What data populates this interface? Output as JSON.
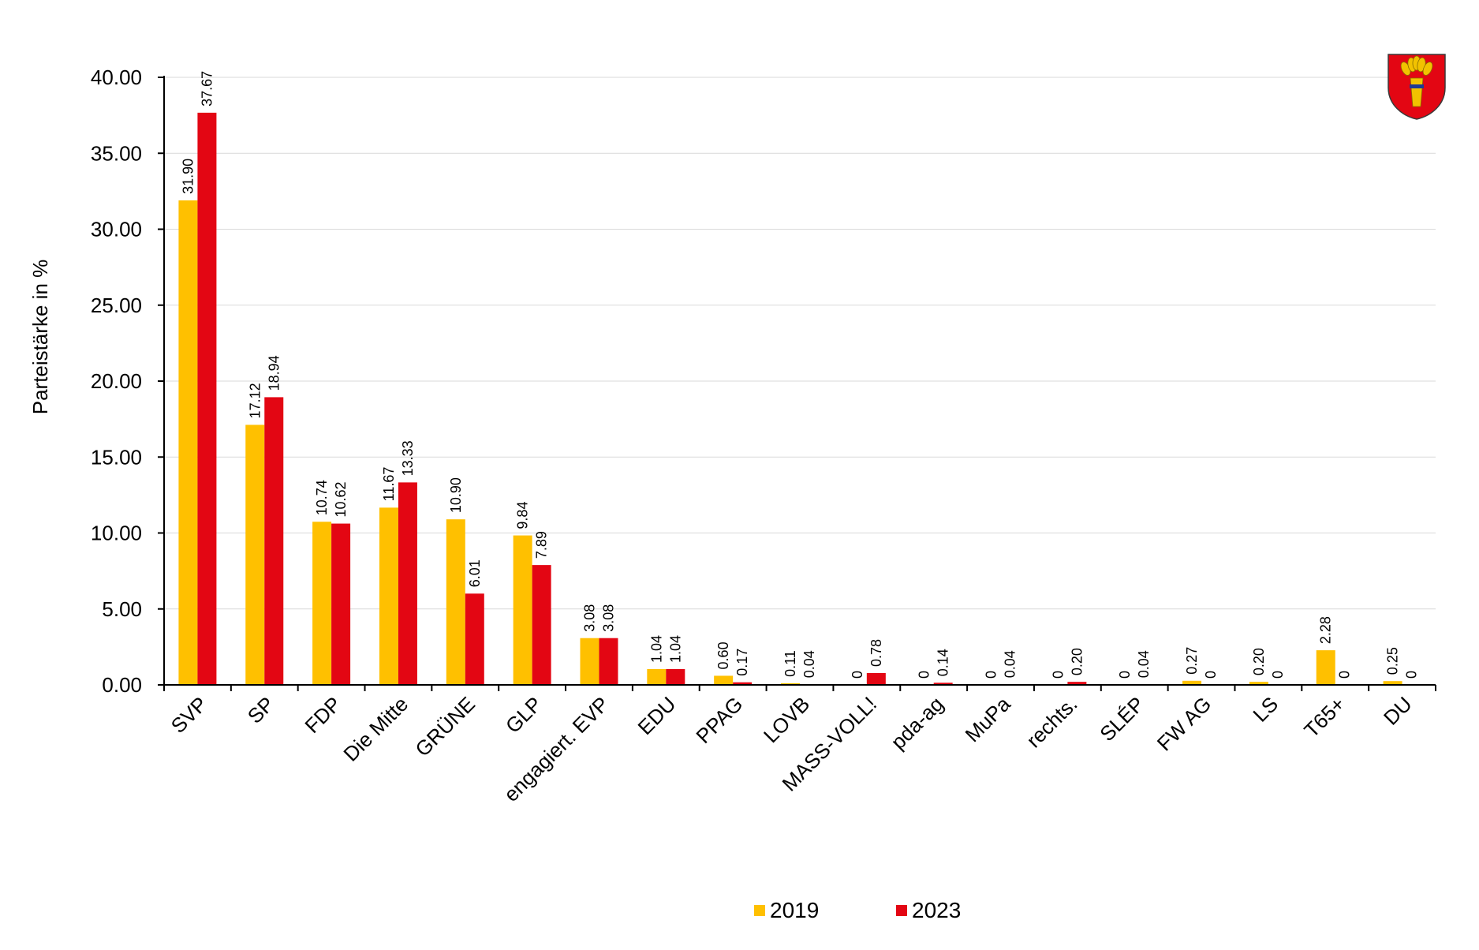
{
  "chart_data": {
    "type": "bar",
    "title": "",
    "xlabel": "",
    "ylabel": "Parteistärke in %",
    "ylim": [
      0,
      40
    ],
    "yticks": [
      "0.00",
      "5.00",
      "10.00",
      "15.00",
      "20.00",
      "25.00",
      "30.00",
      "35.00",
      "40.00"
    ],
    "grid": true,
    "legend_position": "bottom",
    "categories": [
      "SVP",
      "SP",
      "FDP",
      "Die Mitte",
      "GRÜNE",
      "GLP",
      "engagiert. EVP",
      "EDU",
      "PPAG",
      "LOVB",
      "MASS-VOLL!",
      "pda-ag",
      "MuPa",
      "rechts.",
      "SLÉP",
      "FW AG",
      "LS",
      "T65+",
      "DU"
    ],
    "series": [
      {
        "name": "2019",
        "color": "#FFC000",
        "values": [
          31.9,
          17.12,
          10.74,
          11.67,
          10.9,
          9.84,
          3.08,
          1.04,
          0.6,
          0.11,
          0,
          0,
          0,
          0,
          0,
          0.27,
          0.2,
          2.28,
          0.25
        ],
        "labels": [
          "31.90",
          "17.12",
          "10.74",
          "11.67",
          "10.90",
          "9.84",
          "3.08",
          "1.04",
          "0.60",
          "0.11",
          "0",
          "0",
          "0",
          "0",
          "0",
          "0.27",
          "0.20",
          "2.28",
          "0.25"
        ]
      },
      {
        "name": "2023",
        "color": "#E30613",
        "values": [
          37.67,
          18.94,
          10.62,
          13.33,
          6.01,
          7.89,
          3.08,
          1.04,
          0.17,
          0.04,
          0.78,
          0.14,
          0.04,
          0.2,
          0.04,
          0,
          0,
          0,
          0
        ],
        "labels": [
          "37.67",
          "18.94",
          "10.62",
          "13.33",
          "6.01",
          "7.89",
          "3.08",
          "1.04",
          "0.17",
          "0.04",
          "0.78",
          "0.14",
          "0.04",
          "0.20",
          "0.04",
          "0",
          "0",
          "0",
          "0"
        ]
      }
    ]
  },
  "emblem": {
    "icon": "coat-of-arms-wheat-sheaf-icon",
    "shield_color": "#E30613",
    "sheaf_color": "#F2C200"
  }
}
